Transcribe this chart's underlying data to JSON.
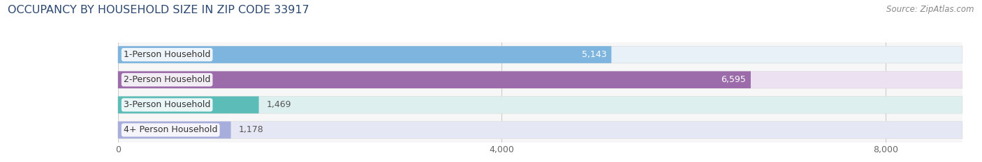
{
  "title": "OCCUPANCY BY HOUSEHOLD SIZE IN ZIP CODE 33917",
  "source": "Source: ZipAtlas.com",
  "categories": [
    "1-Person Household",
    "2-Person Household",
    "3-Person Household",
    "4+ Person Household"
  ],
  "values": [
    5143,
    6595,
    1469,
    1178
  ],
  "bar_colors": [
    "#7eb5de",
    "#9b6baa",
    "#5bbcb8",
    "#a8aedc"
  ],
  "bar_bg_colors": [
    "#e8f1f8",
    "#ece1f0",
    "#ddf0ef",
    "#e5e7f5"
  ],
  "xlim_max": 8800,
  "xticks": [
    0,
    4000,
    8000
  ],
  "title_fontsize": 11.5,
  "source_fontsize": 8.5,
  "label_fontsize": 9,
  "value_fontsize": 9,
  "bg_color": "#ffffff",
  "plot_bg_color": "#f7f7f7",
  "bar_height": 0.68,
  "bar_gap": 0.32
}
